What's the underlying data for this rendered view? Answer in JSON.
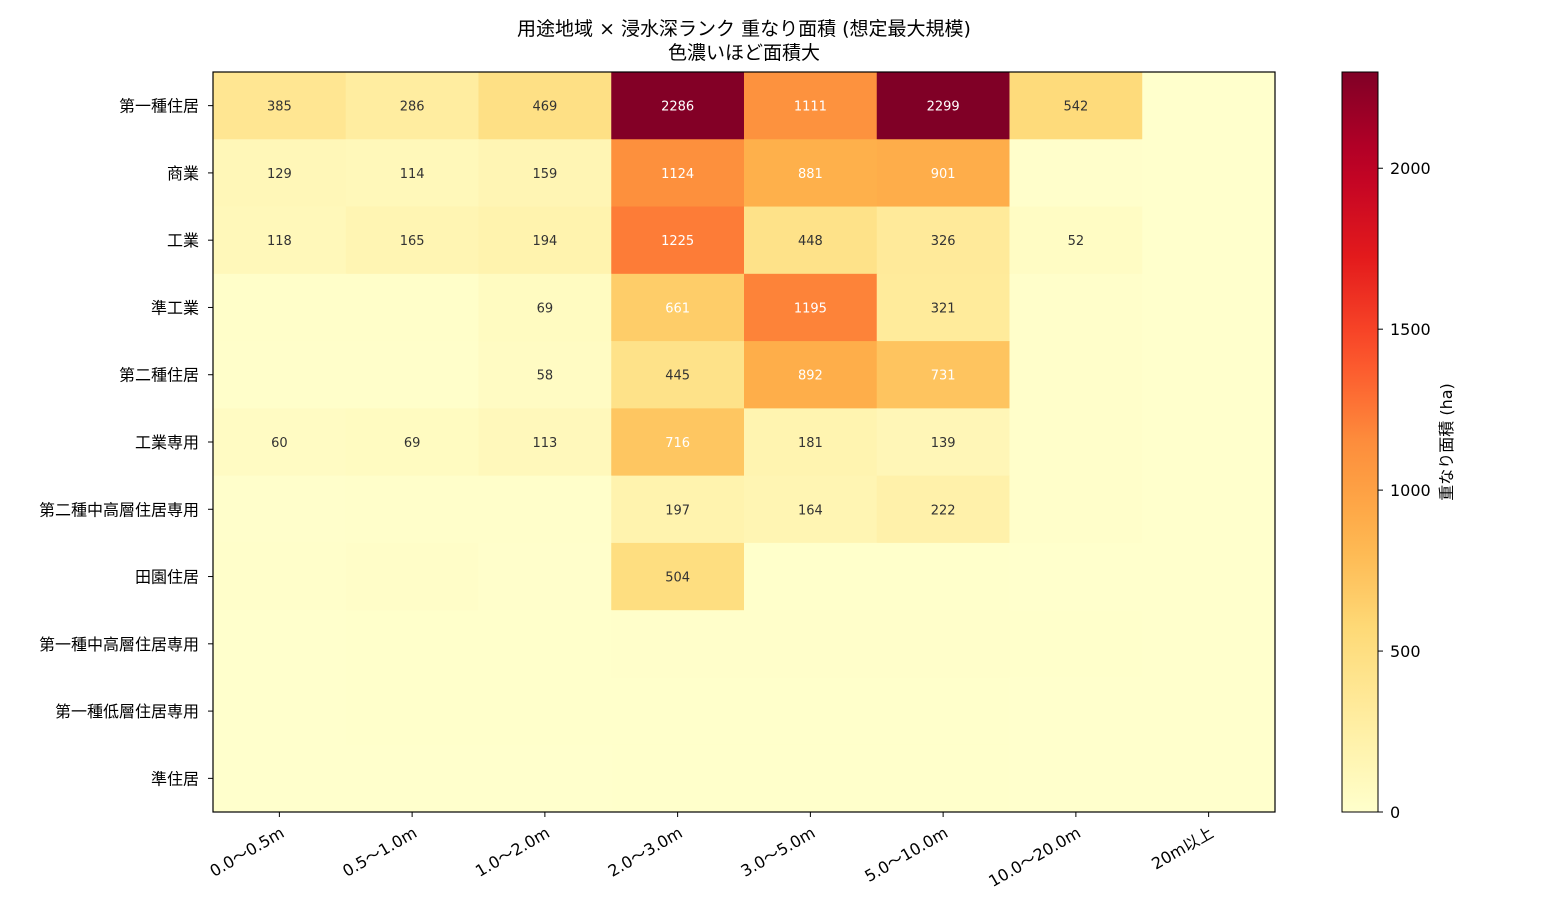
{
  "chart_data": {
    "type": "heatmap",
    "title": "用途地域 × 浸水深ランク 重なり面積 (想定最大規模)",
    "subtitle": "色濃いほど面積大",
    "x_categories": [
      "0.0〜0.5m",
      "0.5〜1.0m",
      "1.0〜2.0m",
      "2.0〜3.0m",
      "3.0〜5.0m",
      "5.0〜10.0m",
      "10.0〜20.0m",
      "20m以上"
    ],
    "y_categories": [
      "第一種住居",
      "商業",
      "工業",
      "準工業",
      "第二種住居",
      "工業専用",
      "第二種中高層住居専用",
      "田園住居",
      "第一種中高層住居専用",
      "第一種低層住居専用",
      "準住居"
    ],
    "values": [
      [
        385,
        286,
        469,
        2286,
        1111,
        2299,
        542,
        0
      ],
      [
        129,
        114,
        159,
        1124,
        881,
        901,
        8,
        0
      ],
      [
        118,
        165,
        194,
        1225,
        448,
        326,
        52,
        0
      ],
      [
        20,
        20,
        69,
        661,
        1195,
        321,
        15,
        0
      ],
      [
        10,
        15,
        58,
        445,
        892,
        731,
        12,
        0
      ],
      [
        60,
        69,
        113,
        716,
        181,
        139,
        10,
        0
      ],
      [
        8,
        10,
        15,
        197,
        164,
        222,
        14,
        0
      ],
      [
        12,
        25,
        8,
        504,
        5,
        5,
        3,
        0
      ],
      [
        3,
        5,
        5,
        10,
        10,
        15,
        4,
        0
      ],
      [
        3,
        4,
        4,
        6,
        5,
        5,
        2,
        0
      ],
      [
        2,
        3,
        3,
        4,
        5,
        4,
        2,
        0
      ]
    ],
    "labels": [
      [
        "385",
        "286",
        "469",
        "2286",
        "1111",
        "2299",
        "542",
        ""
      ],
      [
        "129",
        "114",
        "159",
        "1124",
        "881",
        "901",
        "",
        ""
      ],
      [
        "118",
        "165",
        "194",
        "1225",
        "448",
        "326",
        "52",
        ""
      ],
      [
        "",
        "",
        "69",
        "661",
        "1195",
        "321",
        "",
        ""
      ],
      [
        "",
        "",
        "58",
        "445",
        "892",
        "731",
        "",
        ""
      ],
      [
        "60",
        "69",
        "113",
        "716",
        "181",
        "139",
        "",
        ""
      ],
      [
        "",
        "",
        "",
        "197",
        "164",
        "222",
        "",
        ""
      ],
      [
        "",
        "",
        "",
        "504",
        "",
        "",
        "",
        ""
      ],
      [
        "",
        "",
        "",
        "",
        "",
        "",
        "",
        ""
      ],
      [
        "",
        "",
        "",
        "",
        "",
        "",
        "",
        ""
      ],
      [
        "",
        "",
        "",
        "",
        "",
        "",
        "",
        ""
      ]
    ],
    "colorbar": {
      "label": "重なり面積 (ha)",
      "min": 0,
      "max": 2299,
      "ticks": [
        0,
        500,
        1000,
        1500,
        2000
      ],
      "colormap": "YlOrRd"
    }
  }
}
